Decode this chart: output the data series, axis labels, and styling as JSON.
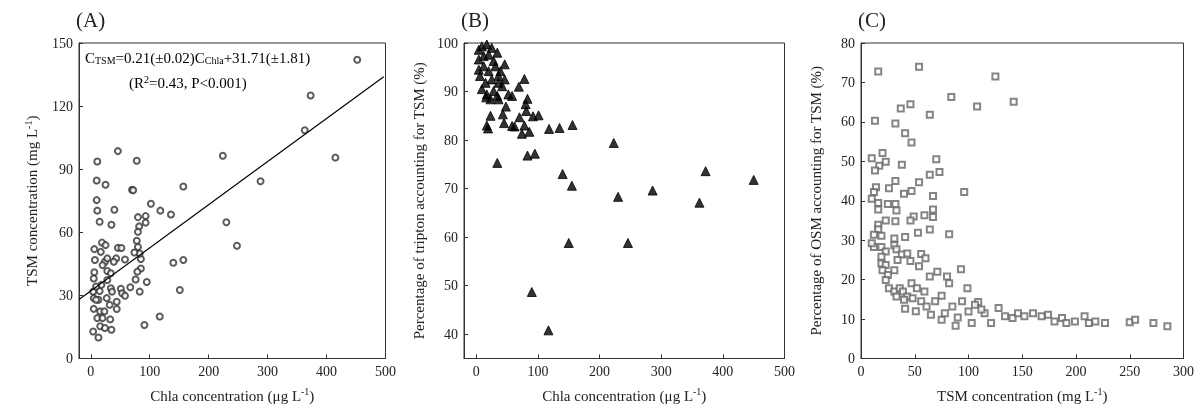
{
  "chart_data": [
    {
      "type": "scatter",
      "title": "(A)",
      "xlabel": "Chla concentration (μg L$^{-1}$)",
      "ylabel": "TSM concentration (mg L$^{-1}$)",
      "annotations": [
        "C$_{TSM}$=0.21(±0.02)C$_{Chla}$+31.71(±1.81)",
        "(R$^{2}$=0.43, P<0.001)"
      ],
      "xlim": [
        -20,
        500
      ],
      "xticks": [
        0,
        100,
        200,
        300,
        400,
        500
      ],
      "ylim": [
        0,
        150
      ],
      "yticks": [
        0,
        30,
        60,
        90,
        120,
        150
      ],
      "grid": false,
      "marker": "circle",
      "series": [
        {
          "color": "#333333",
          "x": [
            452,
            373,
            363,
            415,
            288,
            224,
            230,
            248,
            157,
            157,
            140,
            151,
            117,
            136,
            118,
            102,
            91,
            95,
            93,
            93,
            80,
            82,
            80,
            78,
            78,
            70,
            72,
            46,
            11,
            10,
            25,
            10,
            11,
            15,
            40,
            35,
            85,
            85,
            79,
            83,
            80,
            74,
            76,
            83,
            51,
            53,
            67,
            58,
            58,
            46,
            52,
            43,
            44,
            44,
            35,
            33,
            19,
            6,
            7,
            6,
            5,
            4,
            5,
            5,
            4,
            13,
            16,
            11,
            16,
            13,
            15,
            18,
            28,
            28,
            24,
            34,
            27,
            32,
            36,
            23,
            34,
            39,
            28,
            20,
            17,
            25,
            24,
            20,
            9,
            9
          ],
          "values": [
            142,
            125,
            108.5,
            95.5,
            84.3,
            96.4,
            64.8,
            53.6,
            81.8,
            46.8,
            45.5,
            32.6,
            20,
            68.5,
            70.3,
            73.6,
            15.9,
            36.4,
            67.7,
            64.6,
            67.2,
            62.8,
            60.2,
            56,
            94,
            80.2,
            80,
            98.6,
            93.7,
            84.6,
            82.6,
            75.3,
            70.3,
            65,
            70.7,
            63.6,
            47.3,
            42.8,
            41.3,
            49.9,
            53,
            50.4,
            37.6,
            31.8,
            33.2,
            31,
            33.9,
            29.8,
            47.1,
            52.6,
            52.5,
            47.6,
            27,
            23.5,
            13.7,
            18.6,
            55.1,
            52,
            46.8,
            41,
            38,
            31.8,
            28.7,
            23.6,
            12.8,
            10,
            15.3,
            19.2,
            22.4,
            27.9,
            32.1,
            35,
            37.3,
            41.6,
            46,
            33.4,
            28.7,
            25.5,
            31.8,
            22.4,
            40.5,
            46,
            47.6,
            44.4,
            50.7,
            53.9,
            14.5,
            19.2,
            27.9,
            34.2
          ]
        },
        {
          "type": "line",
          "color": "#000000",
          "marker": "none",
          "line_style": "solid",
          "x": [
            -20,
            497
          ],
          "values": [
            28,
            134
          ]
        }
      ]
    },
    {
      "type": "scatter",
      "title": "(B)",
      "xlabel": "Chla concentration (μg L$^{-1}$)",
      "ylabel": "Percentage of tripton accounting for TSM (%)",
      "xlim": [
        -20,
        500
      ],
      "xticks": [
        0,
        100,
        200,
        300,
        400,
        500
      ],
      "ylim": [
        35,
        100
      ],
      "yticks": [
        40,
        50,
        60,
        70,
        80,
        90,
        100
      ],
      "grid": false,
      "marker": "triangle",
      "series": [
        {
          "color": "#000000",
          "x": [
            450,
            372,
            362,
            286,
            246,
            230,
            223,
            155,
            140,
            150,
            156,
            135,
            118,
            117,
            90,
            95,
            83,
            34,
            101,
            92,
            78,
            69,
            83,
            80,
            81,
            86,
            74,
            78,
            70,
            62,
            58,
            45,
            48,
            43,
            36,
            23,
            17,
            19,
            46,
            52,
            58,
            4,
            9,
            17,
            25,
            34,
            4,
            12,
            20,
            31,
            39,
            6,
            15,
            25,
            36,
            42,
            17,
            9,
            28,
            34,
            4,
            12,
            20,
            28,
            16,
            23,
            36,
            46
          ],
          "values": [
            71.8,
            73.6,
            67.1,
            69.6,
            58.8,
            68.3,
            79.4,
            70.6,
            73,
            58.8,
            83.1,
            82.5,
            82.3,
            40.8,
            48.7,
            77.2,
            76.8,
            75.3,
            85.1,
            84.9,
            92.6,
            91,
            88.5,
            87.4,
            86,
            81.7,
            81.3,
            83,
            84.7,
            82.8,
            82.9,
            83.5,
            86.9,
            85.3,
            88.4,
            85,
            83,
            82.4,
            95.6,
            89.4,
            89.1,
            98.6,
            99.3,
            99.7,
            99,
            98,
            96.6,
            95.2,
            94.2,
            95.2,
            94.2,
            93.2,
            91.8,
            92.5,
            91.8,
            91.1,
            89.4,
            90.5,
            90.1,
            89.1,
            94.5,
            97.3,
            97.6,
            96.3,
            88.8,
            88.4,
            93.2,
            92.5
          ]
        }
      ]
    },
    {
      "type": "scatter",
      "title": "(C)",
      "xlabel": "TSM concentration (mg L$^{-1}$)",
      "ylabel": "Percentage of OSM accounting for TSM (%)",
      "xlim": [
        0,
        300
      ],
      "xticks": [
        0,
        50,
        100,
        150,
        200,
        250,
        300
      ],
      "ylim": [
        0,
        80
      ],
      "yticks": [
        0,
        10,
        20,
        30,
        40,
        50,
        60,
        70,
        80
      ],
      "grid": false,
      "marker": "square",
      "series": [
        {
          "color": "#666666",
          "x": [
            16,
            54,
            125,
            142,
            108,
            84,
            64,
            46,
            37,
            32,
            13,
            41,
            47,
            20,
            10,
            23,
            17,
            13,
            38,
            70,
            73,
            64,
            54,
            32,
            14,
            26,
            12,
            47,
            40,
            96,
            67,
            10,
            16,
            25,
            32,
            33,
            16,
            67,
            59,
            49,
            67,
            46,
            32,
            16,
            23,
            16,
            64,
            53,
            82,
            12,
            19,
            31,
            41,
            12,
            10,
            31,
            19,
            23,
            33,
            38,
            43,
            56,
            60,
            34,
            46,
            19,
            54,
            19,
            23,
            31,
            20,
            25,
            93,
            71,
            64,
            80,
            82,
            99,
            47,
            52,
            23,
            26,
            31,
            36,
            39,
            43,
            59,
            75,
            33,
            40,
            48,
            56,
            69,
            94,
            109,
            41,
            51,
            61,
            65,
            75,
            88,
            103,
            78,
            85,
            100,
            90,
            115,
            121,
            128,
            134,
            141,
            146,
            152,
            160,
            168,
            174,
            180,
            187,
            191,
            199,
            208,
            212,
            218,
            227,
            250,
            255,
            272,
            285,
            112,
            106
          ],
          "values": [
            72.8,
            74,
            71.5,
            65.1,
            63.9,
            66.3,
            61.8,
            64.5,
            63.4,
            59.6,
            60.3,
            57.1,
            54.8,
            52.1,
            50.8,
            49.9,
            48.9,
            47.7,
            49.1,
            50.5,
            47.3,
            46.6,
            44.7,
            45,
            43.4,
            43.2,
            42.2,
            42.5,
            41.8,
            42.2,
            41.2,
            40.5,
            39.4,
            39.2,
            39.2,
            37.5,
            37.8,
            37.8,
            36.3,
            36,
            35.9,
            35,
            34.8,
            33.9,
            35,
            32.8,
            32.7,
            31.9,
            31.5,
            31.4,
            31.1,
            30.4,
            30.8,
            28.3,
            29.2,
            28.7,
            28.3,
            27.1,
            27.7,
            26.4,
            26.6,
            26.5,
            25.4,
            25,
            24.7,
            25.8,
            23.4,
            24.1,
            23.7,
            22.4,
            22.4,
            21.2,
            22.6,
            22,
            20.8,
            20.8,
            19.1,
            17.8,
            19.1,
            17.8,
            19.9,
            17.8,
            17,
            17.8,
            17,
            15.7,
            17,
            15.9,
            15.7,
            14.9,
            15.3,
            14.5,
            14.5,
            14.5,
            14.3,
            12.6,
            12,
            13.2,
            11.1,
            9.8,
            8.3,
            9,
            11.5,
            13.2,
            11.9,
            10.4,
            11.5,
            9,
            12.8,
            10.7,
            10.3,
            11.5,
            10.7,
            11.5,
            10.7,
            11.1,
            9.4,
            10.3,
            9,
            9.4,
            10.7,
            9,
            9.4,
            9,
            9.2,
            9.8,
            9,
            8.2,
            12.4,
            13.6
          ]
        }
      ]
    }
  ]
}
